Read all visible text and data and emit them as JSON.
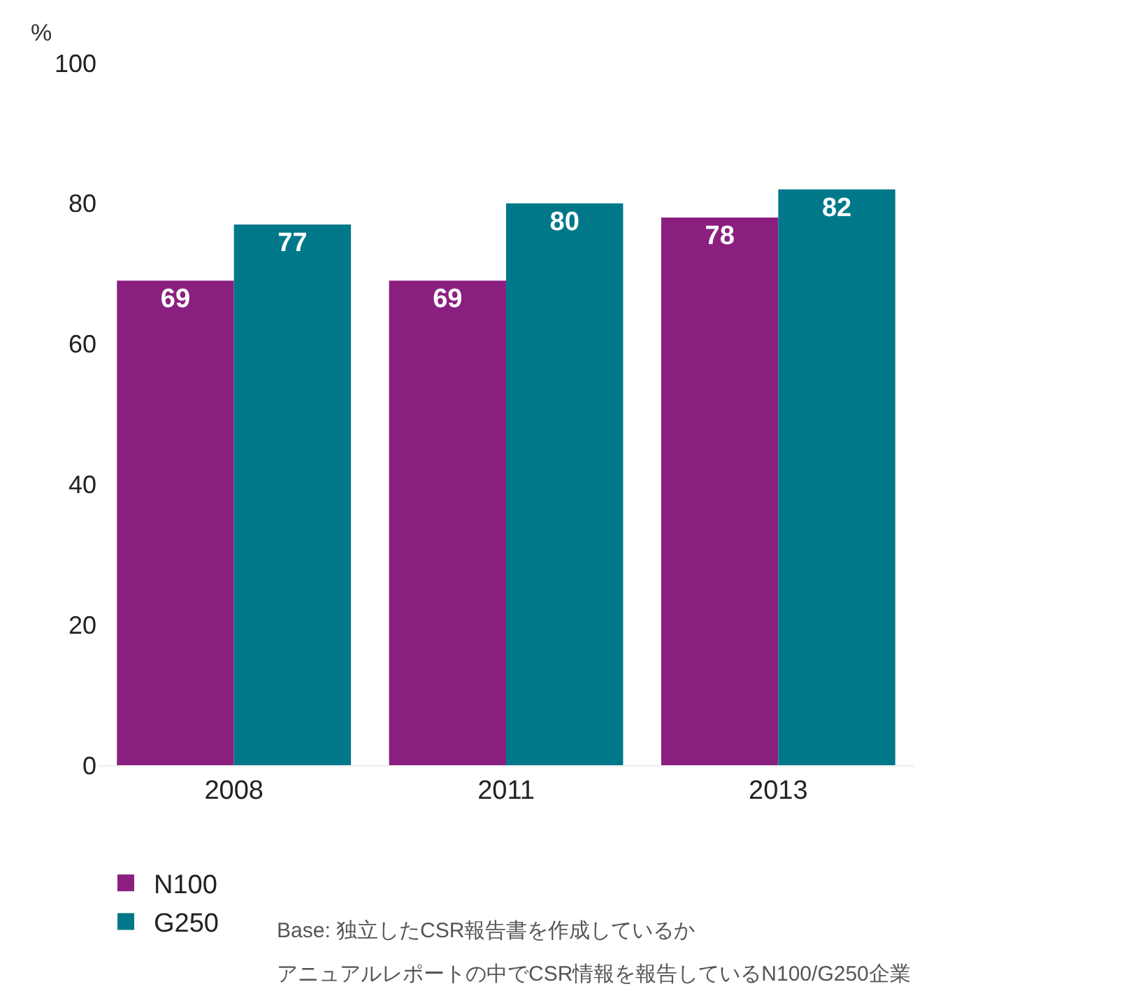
{
  "chart_data": {
    "type": "bar",
    "ylabel": "%",
    "categories": [
      "2008",
      "2011",
      "2013"
    ],
    "series": [
      {
        "name": "N100",
        "color": "#8b1f80",
        "values": [
          69,
          69,
          78
        ]
      },
      {
        "name": "G250",
        "color": "#00788a",
        "values": [
          77,
          80,
          82
        ]
      }
    ],
    "ylim": [
      0,
      100
    ],
    "yticks": [
      0,
      20,
      40,
      60,
      80,
      100
    ],
    "grid": false,
    "data_labels": true,
    "legend": "bottom left",
    "annotations": [
      "Base: 独立したCSR報告書を作成しているか",
      "アニュアルレポートの中でCSR情報を報告しているN100/G250企業"
    ]
  }
}
